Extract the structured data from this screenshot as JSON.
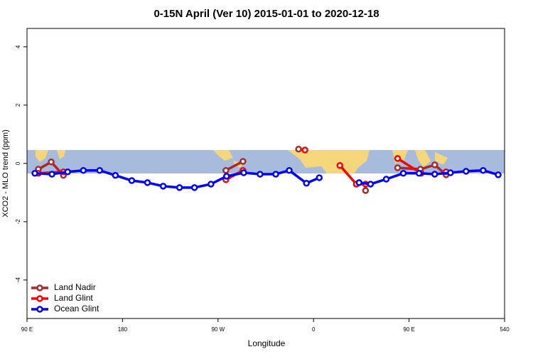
{
  "chart_data": {
    "type": "line",
    "title": "0-15N April (Ver 10)   2015-01-01 to 2020-12-18",
    "x_label": "Longitude",
    "y_label": "XCO2 - MLO trend (ppm)",
    "xlim": [
      90,
      540
    ],
    "ylim": [
      -5.32,
      4.63
    ],
    "xticks": [
      {
        "value": 90,
        "label": "90 E"
      },
      180,
      {
        "value": 270,
        "label": "90 W"
      },
      {
        "value": 360,
        "label": "0"
      },
      {
        "value": 450,
        "label": "90 E"
      },
      540
    ],
    "yticks": [
      -4,
      -2,
      0,
      2,
      4
    ],
    "legend": "bottom-left",
    "series": [
      {
        "name": "Land Nadir",
        "color": "#a52a2a",
        "x": [
          100.7,
          112.8,
          124.3,
          null,
          277.4,
          293.5,
          null,
          345.9,
          null,
          409.0,
          null,
          439.2,
          460.7,
          474.2,
          484.9
        ],
        "values": [
          -0.2,
          0.05,
          -0.41,
          null,
          -0.24,
          0.07,
          null,
          0.49,
          null,
          -0.93,
          null,
          -0.15,
          -0.2,
          -0.05,
          -0.39
        ]
      },
      {
        "name": "Land Glint",
        "color": "#ff0000",
        "x": [
          100.7,
          124.3,
          null,
          277.4,
          293.5,
          null,
          351.9,
          null,
          384.8,
          400.3,
          409.0,
          null,
          439.2,
          461.4,
          null,
          484.9
        ],
        "values": [
          -0.34,
          -0.29,
          null,
          -0.56,
          -0.24,
          null,
          0.46,
          null,
          -0.07,
          -0.71,
          -0.71,
          null,
          0.17,
          -0.34,
          null,
          -0.29
        ]
      },
      {
        "name": "Ocean Glint",
        "color": "#0000ff",
        "x": [
          97.4,
          113.5,
          128.3,
          143.1,
          158.5,
          173.3,
          188.7,
          203.5,
          218.3,
          233.7,
          247.8,
          263.3,
          278.0,
          294.2,
          309.6,
          324.4,
          337.1,
          353.3,
          365.4,
          null,
          402.9,
          413.7,
          428.5,
          444.6,
          459.4,
          474.2,
          489.0,
          503.7,
          519.8,
          534.0
        ],
        "values": [
          -0.34,
          -0.37,
          -0.29,
          -0.24,
          -0.24,
          -0.41,
          -0.59,
          -0.66,
          -0.78,
          -0.83,
          -0.83,
          -0.71,
          -0.44,
          -0.32,
          -0.37,
          -0.37,
          -0.24,
          -0.68,
          -0.49,
          null,
          -0.66,
          -0.71,
          -0.54,
          -0.34,
          -0.34,
          -0.37,
          -0.32,
          -0.27,
          -0.24,
          -0.39
        ]
      }
    ]
  }
}
